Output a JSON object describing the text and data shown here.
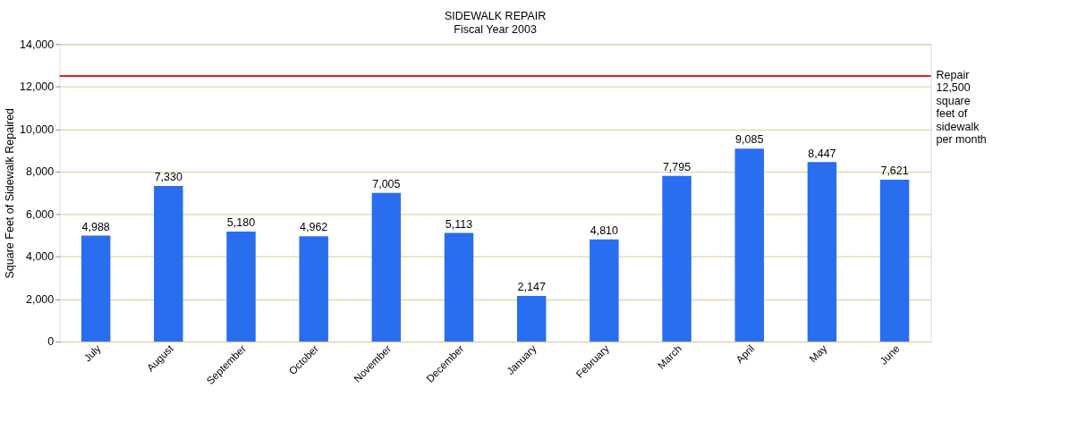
{
  "chart_data": {
    "type": "bar",
    "title": "SIDEWALK REPAIR",
    "subtitle": "Fiscal Year 2003",
    "ylabel": "Square Feet of Sidewalk Repaired",
    "categories": [
      "July",
      "August",
      "September",
      "October",
      "November",
      "December",
      "January",
      "February",
      "March",
      "April",
      "May",
      "June"
    ],
    "values": [
      4988,
      7330,
      5180,
      4962,
      7005,
      5113,
      2147,
      4810,
      7795,
      9085,
      8447,
      7621
    ],
    "value_labels": [
      "4,988",
      "7,330",
      "5,180",
      "4,962",
      "7,005",
      "5,113",
      "2,147",
      "4,810",
      "7,795",
      "9,085",
      "8,447",
      "7,621"
    ],
    "color": "#2a6ef0",
    "ylim": [
      0,
      14000
    ],
    "yticks": [
      0,
      {
        "value": 2000,
        "label": "2,000"
      },
      {
        "value": 4000,
        "label": "4,000"
      },
      {
        "value": 6000,
        "label": "6,000"
      },
      {
        "value": 8000,
        "label": "8,000"
      },
      {
        "value": 10000,
        "label": "10,000"
      },
      {
        "value": 12000,
        "label": "12,000"
      },
      {
        "value": 14000,
        "label": "14,000"
      }
    ],
    "grid": "y",
    "ref_lines": [
      {
        "axis": "y",
        "value": 12500,
        "label": "Repair 12,500 square feet of sidewalk per month",
        "color": "#e02020",
        "line_style": "solid"
      }
    ]
  }
}
